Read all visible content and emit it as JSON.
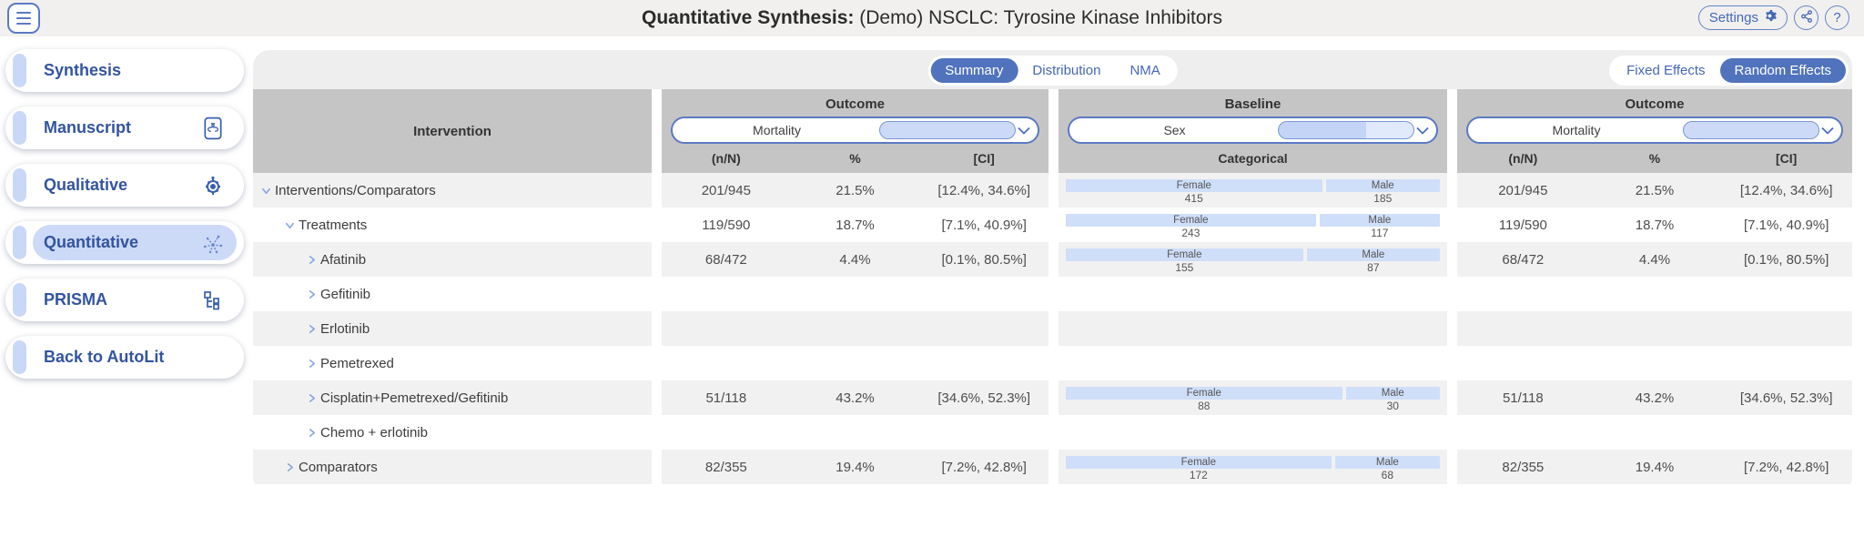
{
  "header": {
    "title_primary": "Quantitative Synthesis:",
    "title_secondary": " (Demo) NSCLC: Tyrosine Kinase Inhibitors",
    "settings_label": "Settings",
    "help_glyph": "?"
  },
  "sidebar": {
    "items": [
      {
        "label": "Synthesis",
        "icon": null,
        "active": false
      },
      {
        "label": "Manuscript",
        "icon": "document-icon",
        "active": false
      },
      {
        "label": "Qualitative",
        "icon": "wheel-icon",
        "active": false
      },
      {
        "label": "Quantitative",
        "icon": "burst-icon",
        "active": true
      },
      {
        "label": "PRISMA",
        "icon": "flowchart-icon",
        "active": false
      },
      {
        "label": "Back to AutoLit",
        "icon": null,
        "active": false
      }
    ]
  },
  "tabs": {
    "items": [
      "Summary",
      "Distribution",
      "NMA"
    ],
    "selected": "Summary"
  },
  "effects": {
    "items": [
      "Fixed Effects",
      "Random Effects"
    ],
    "selected": "Random Effects"
  },
  "table": {
    "intervention_header": "Intervention",
    "groups": [
      {
        "title": "Outcome",
        "dropdown_value": "Mortality",
        "subheaders": [
          "(n/N)",
          "%",
          "[CI]"
        ]
      },
      {
        "title": "Baseline",
        "dropdown_value": "Sex",
        "subheaders": [
          "Categorical"
        ]
      },
      {
        "title": "Outcome",
        "dropdown_value": "Mortality",
        "subheaders": [
          "(n/N)",
          "%",
          "[CI]"
        ]
      }
    ],
    "baseline_labels": {
      "female": "Female",
      "male": "Male"
    },
    "rows": [
      {
        "label": "Interventions/Comparators",
        "level": 0,
        "expanded": true,
        "nN": "201/945",
        "pct": "21.5%",
        "ci": "[12.4%, 34.6%]",
        "female": 415,
        "male": 185
      },
      {
        "label": "Treatments",
        "level": 1,
        "expanded": true,
        "nN": "119/590",
        "pct": "18.7%",
        "ci": "[7.1%, 40.9%]",
        "female": 243,
        "male": 117
      },
      {
        "label": "Afatinib",
        "level": 2,
        "expanded": false,
        "nN": "68/472",
        "pct": "4.4%",
        "ci": "[0.1%, 80.5%]",
        "female": 155,
        "male": 87
      },
      {
        "label": "Gefitinib",
        "level": 2,
        "expanded": false,
        "nN": null,
        "pct": null,
        "ci": null,
        "female": null,
        "male": null
      },
      {
        "label": "Erlotinib",
        "level": 2,
        "expanded": false,
        "nN": null,
        "pct": null,
        "ci": null,
        "female": null,
        "male": null
      },
      {
        "label": "Pemetrexed",
        "level": 2,
        "expanded": false,
        "nN": null,
        "pct": null,
        "ci": null,
        "female": null,
        "male": null
      },
      {
        "label": "Cisplatin+Pemetrexed/Gefitinib",
        "level": 2,
        "expanded": false,
        "nN": "51/118",
        "pct": "43.2%",
        "ci": "[34.6%, 52.3%]",
        "female": 88,
        "male": 30
      },
      {
        "label": "Chemo + erlotinib",
        "level": 2,
        "expanded": false,
        "nN": null,
        "pct": null,
        "ci": null,
        "female": null,
        "male": null
      },
      {
        "label": "Comparators",
        "level": 1,
        "expanded": false,
        "nN": "82/355",
        "pct": "19.4%",
        "ci": "[7.2%, 42.8%]",
        "female": 172,
        "male": 68
      }
    ]
  },
  "colors": {
    "accent_blue": "#5173bd",
    "link_blue": "#33549f",
    "light_blue": "#ccdaf8",
    "header_gray": "#c6c5c5"
  }
}
